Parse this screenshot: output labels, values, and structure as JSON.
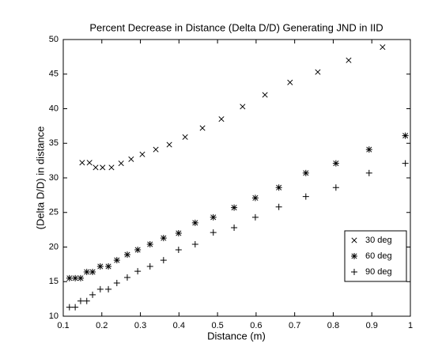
{
  "chart_data": {
    "type": "scatter",
    "title": "Percent Decrease in Distance (Delta D/D) Generating JND in IID",
    "x_label": "Distance (m)",
    "y_label": "(Delta D/D) in distance",
    "xlim": [
      0.1,
      1
    ],
    "ylim": [
      10,
      50
    ],
    "xticks": [
      0.1,
      0.2,
      0.3,
      0.4,
      0.5,
      0.6,
      0.7,
      0.8,
      0.9,
      1
    ],
    "yticks": [
      10,
      15,
      20,
      25,
      30,
      35,
      40,
      45,
      50
    ],
    "grid": false,
    "legend": "lower right",
    "series": [
      {
        "name": "30 deg",
        "color": "#000000",
        "marker": "x",
        "x": [
          0.149,
          0.168,
          0.184,
          0.202,
          0.225,
          0.25,
          0.276,
          0.305,
          0.34,
          0.375,
          0.416,
          0.461,
          0.51,
          0.565,
          0.623,
          0.688,
          0.76,
          0.84,
          0.928
        ],
        "values": [
          32.2,
          32.2,
          31.5,
          31.5,
          31.5,
          32.1,
          32.7,
          33.4,
          34.1,
          34.8,
          35.9,
          37.2,
          38.5,
          40.3,
          42.0,
          43.8,
          45.3,
          47.0,
          48.9
        ]
      },
      {
        "name": "60 deg",
        "color": "#000000",
        "marker": "*",
        "x": [
          0.116,
          0.131,
          0.145,
          0.161,
          0.176,
          0.196,
          0.217,
          0.239,
          0.266,
          0.293,
          0.325,
          0.36,
          0.399,
          0.442,
          0.489,
          0.543,
          0.598,
          0.659,
          0.729,
          0.807,
          0.893,
          0.987
        ],
        "values": [
          15.5,
          15.5,
          15.5,
          16.4,
          16.4,
          17.2,
          17.2,
          18.1,
          18.9,
          19.6,
          20.4,
          21.3,
          22.0,
          23.5,
          24.3,
          25.7,
          27.1,
          28.6,
          30.7,
          32.1,
          34.1,
          36.1
        ]
      },
      {
        "name": "90 deg",
        "color": "#000000",
        "marker": "+",
        "x": [
          0.116,
          0.131,
          0.145,
          0.161,
          0.176,
          0.196,
          0.217,
          0.239,
          0.266,
          0.293,
          0.325,
          0.36,
          0.399,
          0.442,
          0.489,
          0.543,
          0.598,
          0.659,
          0.729,
          0.807,
          0.893,
          0.987
        ],
        "values": [
          11.3,
          11.3,
          12.2,
          12.2,
          13.1,
          13.9,
          13.9,
          14.8,
          15.6,
          16.5,
          17.2,
          18.1,
          19.6,
          20.4,
          22.1,
          22.8,
          24.3,
          25.8,
          27.3,
          28.6,
          30.7,
          32.1
        ]
      }
    ]
  }
}
